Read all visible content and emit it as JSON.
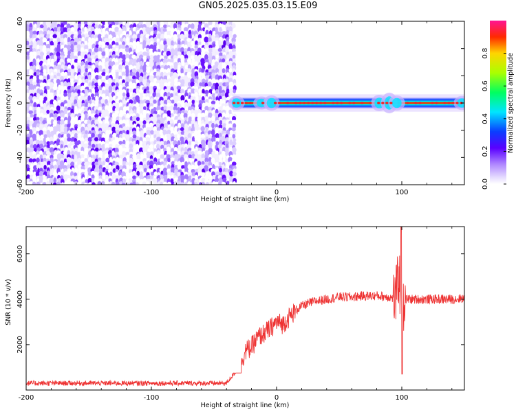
{
  "title": "GN05.2025.035.03.15.E09",
  "colors": {
    "snr_line": "#ee3333",
    "axis": "#000000",
    "background": "#ffffff"
  },
  "chart_data": [
    {
      "type": "heatmap",
      "title": "GN05.2025.035.03.15.E09",
      "xlabel": "Height of straight line (km)",
      "ylabel": "Frequency (Hz)",
      "xlim": [
        -200,
        150
      ],
      "ylim": [
        -60,
        60
      ],
      "x_ticks": [
        -200,
        -100,
        0,
        100
      ],
      "x_tick_labels": [
        "-200",
        "-100",
        "0",
        "100"
      ],
      "y_ticks": [
        -60,
        -40,
        -20,
        0,
        20,
        40,
        60
      ],
      "y_tick_labels": [
        "-60",
        "-40",
        "-20",
        "0",
        "20",
        "40",
        "60"
      ],
      "regions": [
        {
          "description": "noise",
          "x_range": [
            -200,
            -35
          ],
          "freq_range": [
            -60,
            60
          ],
          "amplitude": "low (about 0.0 to 0.2)"
        },
        {
          "description": "signal band",
          "x_range": [
            -35,
            150
          ],
          "center_frequency_hz": 0,
          "half_width_hz": 2,
          "peak_amplitude": 1.0
        }
      ],
      "colorbar": {
        "label": "Normalized spectral amplitude",
        "range": [
          0,
          1
        ],
        "ticks": [
          0.0,
          0.2,
          0.4,
          0.6,
          0.8
        ],
        "tick_labels": [
          "0.0",
          "0.2",
          "0.4",
          "0.6",
          "0.8"
        ],
        "colormap": "hsv-rainbow (white/violet low, red high)"
      },
      "grid": false,
      "legend": "none"
    },
    {
      "type": "line",
      "xlabel": "Height of straight line (km)",
      "ylabel": "SNR (10 * v/v)",
      "xlim": [
        -200,
        150
      ],
      "ylim": [
        0,
        7200
      ],
      "x_ticks": [
        -200,
        -100,
        0,
        100
      ],
      "x_tick_labels": [
        "-200",
        "-100",
        "0",
        "100"
      ],
      "y_ticks": [
        2000,
        4000,
        6000
      ],
      "y_tick_labels": [
        "2000",
        "4000",
        "6000"
      ],
      "series": [
        {
          "x": [
            -200,
            -180,
            -160,
            -140,
            -120,
            -100,
            -80,
            -60,
            -40,
            -30,
            -25,
            -20,
            -15,
            -10,
            -5,
            0,
            5,
            10,
            15,
            20,
            25,
            30,
            40,
            50,
            60,
            70,
            80,
            90,
            95,
            98,
            100,
            102,
            110,
            120,
            130,
            140,
            150
          ],
          "values": [
            300,
            300,
            300,
            300,
            300,
            300,
            300,
            300,
            300,
            1000,
            1700,
            1900,
            2300,
            2500,
            2700,
            3000,
            2900,
            3200,
            3500,
            3700,
            3800,
            3900,
            4000,
            4100,
            4100,
            4150,
            4150,
            4100,
            4000,
            5200,
            2500,
            4000,
            4000,
            4000,
            4000,
            4000,
            4050
          ]
        }
      ],
      "grid": false,
      "legend": "none"
    }
  ]
}
